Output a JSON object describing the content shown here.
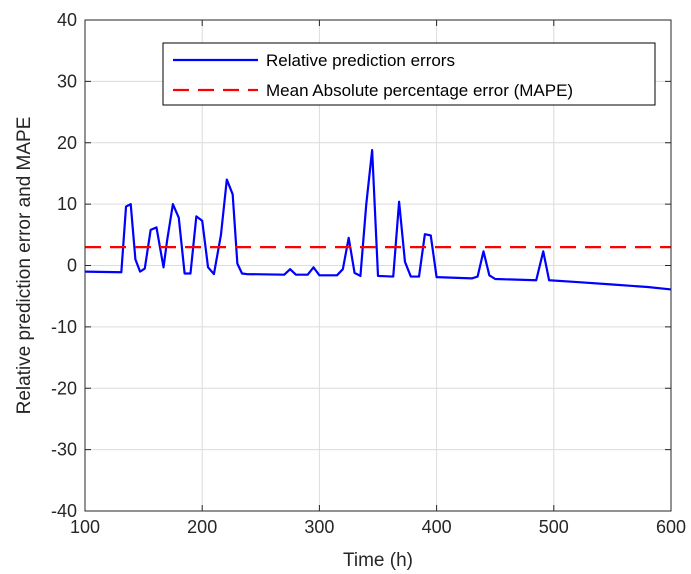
{
  "chart_data": {
    "type": "line",
    "xlabel": "Time (h)",
    "ylabel": "Relative prediction error and MAPE",
    "xlim": [
      100,
      600
    ],
    "ylim": [
      -40,
      40
    ],
    "xticks": [
      100,
      200,
      300,
      400,
      500,
      600
    ],
    "yticks": [
      -40,
      -30,
      -20,
      -10,
      0,
      10,
      20,
      30,
      40
    ],
    "grid": true,
    "legend_position": "top-right",
    "series": [
      {
        "name": "Relative prediction errors",
        "color": "#0000ff",
        "style": "solid",
        "x": [
          100,
          131,
          135,
          139,
          143,
          147,
          151,
          156,
          161,
          167,
          170,
          175,
          180,
          185,
          190,
          195,
          200,
          205,
          210,
          216,
          221,
          226,
          230,
          234,
          238,
          270,
          275,
          280,
          290,
          295,
          300,
          315,
          320,
          325,
          330,
          335,
          340,
          345,
          350,
          363,
          368,
          373,
          378,
          385,
          390,
          395,
          400,
          430,
          435,
          440,
          445,
          450,
          485,
          491,
          496,
          520,
          550,
          580,
          600
        ],
        "y": [
          -1,
          -1.1,
          9.6,
          10,
          1,
          -1,
          -0.5,
          5.8,
          6.2,
          -0.3,
          4,
          10,
          7.8,
          -1.3,
          -1.3,
          8,
          7.3,
          -0.3,
          -1.4,
          5,
          14,
          11.6,
          0.3,
          -1.3,
          -1.4,
          -1.5,
          -0.6,
          -1.5,
          -1.5,
          -0.3,
          -1.6,
          -1.6,
          -0.6,
          4.5,
          -1.2,
          -1.7,
          10,
          18.8,
          -1.7,
          -1.8,
          10.4,
          0.6,
          -1.8,
          -1.8,
          5.1,
          4.9,
          -1.9,
          -2.1,
          -1.8,
          2.3,
          -1.6,
          -2.2,
          -2.4,
          2.3,
          -2.4,
          -2.7,
          -3.1,
          -3.5,
          -3.9
        ]
      },
      {
        "name": "Mean Absolute percentage error (MAPE)",
        "color": "#ff0000",
        "style": "dashed",
        "x": [
          100,
          600
        ],
        "y": [
          3,
          3
        ]
      }
    ]
  }
}
